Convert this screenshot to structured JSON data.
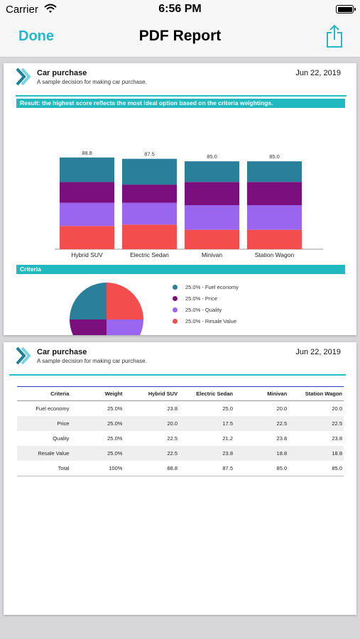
{
  "status_bar": {
    "carrier": "Carrier",
    "time": "6:56 PM"
  },
  "nav": {
    "done_label": "Done",
    "title": "PDF Report"
  },
  "report": {
    "title": "Car purchase",
    "subtitle": "A sample decision for making car purchase.",
    "date": "Jun 22, 2019",
    "result_banner": "Result: the highest score reflects the most ideal option based on the criteria weightings.",
    "criteria_banner": "Criteria"
  },
  "colors": {
    "accent": "#26b8c8",
    "fuel_economy": "#2a7f9a",
    "price": "#7b0f7e",
    "quality": "#9a66f0",
    "resale_value": "#f44d4d"
  },
  "chart_data": [
    {
      "type": "bar",
      "stacked": true,
      "categories": [
        "Hybrid SUV",
        "Electric Sedan",
        "Minivan",
        "Station Wagon"
      ],
      "totals": [
        "88.8",
        "87.5",
        "85.0",
        "85.0"
      ],
      "series": [
        {
          "name": "Resale Value",
          "values": [
            22.5,
            23.8,
            18.8,
            18.8
          ],
          "color": "#f44d4d"
        },
        {
          "name": "Quality",
          "values": [
            22.5,
            21.2,
            23.8,
            23.8
          ],
          "color": "#9a66f0"
        },
        {
          "name": "Price",
          "values": [
            20.0,
            17.5,
            22.5,
            22.5
          ],
          "color": "#7b0f7e"
        },
        {
          "name": "Fuel economy",
          "values": [
            23.8,
            25.0,
            20.0,
            20.0
          ],
          "color": "#2a7f9a"
        }
      ]
    },
    {
      "type": "pie",
      "slices": [
        {
          "label": "25.0% - Fuel economy",
          "value": 25.0,
          "color": "#2a7f9a"
        },
        {
          "label": "25.0% - Price",
          "value": 25.0,
          "color": "#7b0f7e"
        },
        {
          "label": "25.0% - Quality",
          "value": 25.0,
          "color": "#9a66f0"
        },
        {
          "label": "25.0% - Resale Value",
          "value": 25.0,
          "color": "#f44d4d"
        }
      ]
    }
  ],
  "table": {
    "headers": [
      "Criteria",
      "Weight",
      "Hybrid SUV",
      "Electric Sedan",
      "Minivan",
      "Station Wagon"
    ],
    "rows": [
      [
        "Fuel economy",
        "25.0%",
        "23.8",
        "25.0",
        "20.0",
        "20.0"
      ],
      [
        "Price",
        "25.0%",
        "20.0",
        "17.5",
        "22.5",
        "22.5"
      ],
      [
        "Quality",
        "25.0%",
        "22.5",
        "21.2",
        "23.8",
        "23.8"
      ],
      [
        "Resale Value",
        "25.0%",
        "22.5",
        "23.8",
        "18.8",
        "18.8"
      ],
      [
        "Total",
        "100%",
        "88.8",
        "87.5",
        "85.0",
        "85.0"
      ]
    ]
  }
}
